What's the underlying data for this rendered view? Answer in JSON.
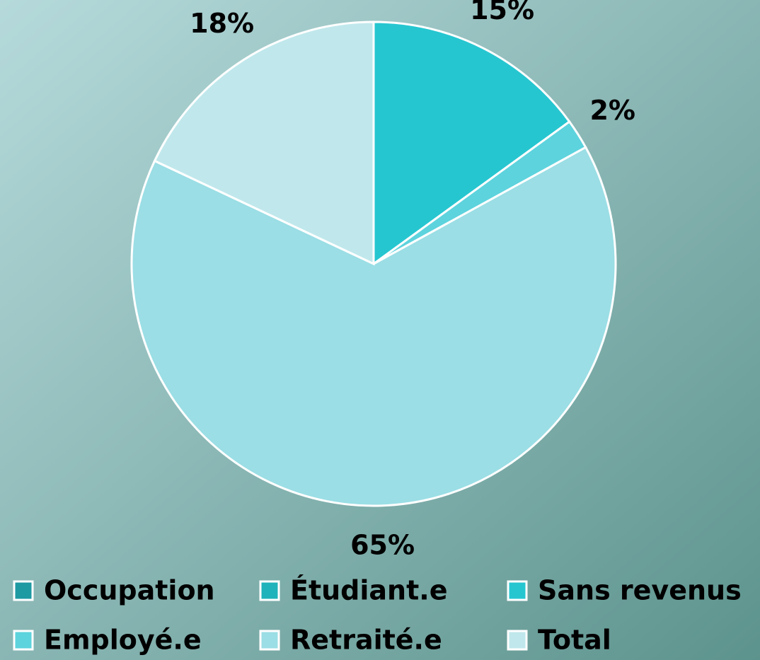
{
  "chart_data": {
    "type": "pie",
    "categories": [
      "Occupation",
      "Étudiant.e",
      "Sans revenus",
      "Employé.e",
      "Retraité.e",
      "Total"
    ],
    "values": [
      0,
      0,
      15,
      2,
      65,
      18
    ],
    "value_labels": [
      null,
      null,
      "15%",
      "2%",
      "65%",
      "18%"
    ],
    "colors": [
      "#1e9aa3",
      "#21b3bb",
      "#26c6d0",
      "#5dd3dd",
      "#9bdee5",
      "#c0e8ec"
    ],
    "legend": "bottom"
  }
}
